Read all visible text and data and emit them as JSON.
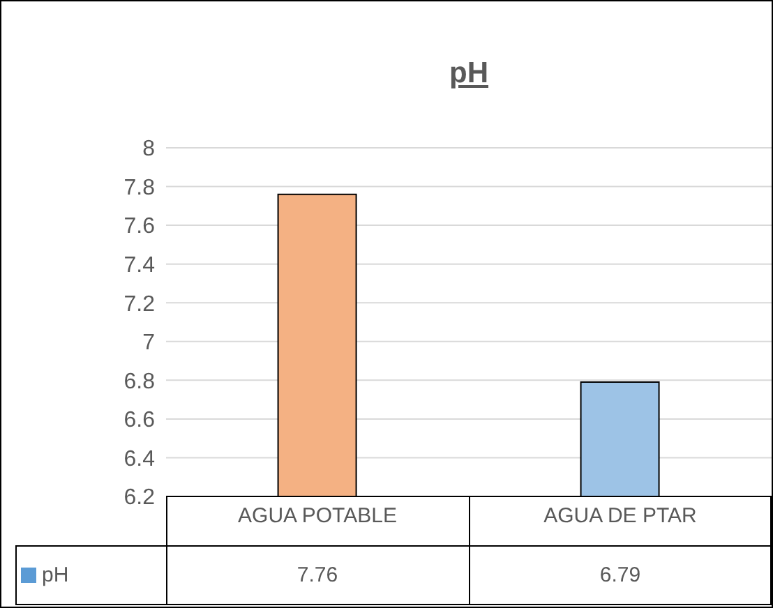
{
  "chart_data": {
    "type": "bar",
    "title": "pH",
    "categories": [
      "AGUA POTABLE",
      "AGUA DE PTAR"
    ],
    "series": [
      {
        "name": "pH",
        "color": "#5b9bd5",
        "colors": [
          "#f4b183",
          "#9dc3e6"
        ],
        "values": [
          7.76,
          6.79
        ]
      }
    ],
    "ylim": [
      6.2,
      8
    ],
    "yticks": [
      6.2,
      6.4,
      6.6,
      6.8,
      7,
      7.2,
      7.4,
      7.6,
      7.8,
      8
    ],
    "grid": "y",
    "legend": "bottom",
    "data_labels": true
  }
}
